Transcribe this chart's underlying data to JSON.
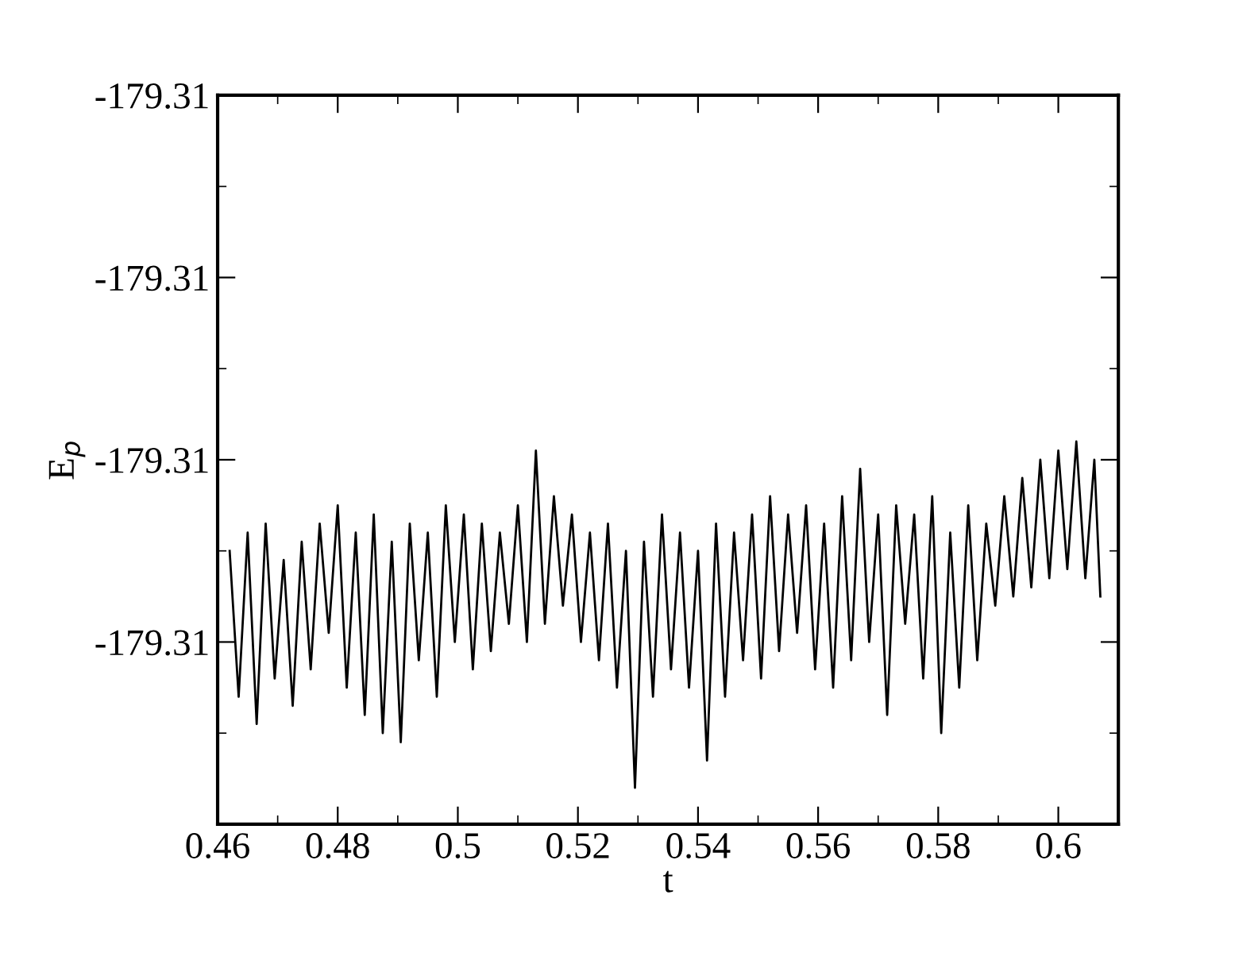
{
  "chart_data": {
    "type": "line",
    "xlabel": "t",
    "ylabel": "E$_{p}$",
    "xlim": [
      0.46,
      0.61
    ],
    "ylim": [
      -179.314,
      -179.306
    ],
    "xticks": [
      0.46,
      {
        "value": 0.47,
        "label": null
      },
      0.48,
      {
        "value": 0.49,
        "label": null
      },
      0.5,
      {
        "value": 0.51,
        "label": null
      },
      0.52,
      {
        "value": 0.53,
        "label": null
      },
      0.54,
      {
        "value": 0.55,
        "label": null
      },
      0.56,
      {
        "value": 0.57,
        "label": null
      },
      0.58,
      {
        "value": 0.59,
        "label": null
      },
      0.6
    ],
    "yticks": [
      {
        "value": -179.313,
        "label": null
      },
      {
        "value": -179.312,
        "label": "-179.31"
      },
      {
        "value": -179.311,
        "label": null
      },
      {
        "value": -179.31,
        "label": "-179.31"
      },
      {
        "value": -179.309,
        "label": null
      },
      {
        "value": -179.308,
        "label": "-179.31"
      },
      {
        "value": -179.307,
        "label": null
      },
      {
        "value": -179.306,
        "label": "-179.31"
      }
    ],
    "grid": false,
    "legend": false,
    "marker": "none",
    "line_style": "solid",
    "series": [
      {
        "color": "#000000",
        "x": [
          0.462,
          0.4635,
          0.465,
          0.4665,
          0.468,
          0.4695,
          0.471,
          0.4725,
          0.474,
          0.4755,
          0.477,
          0.4785,
          0.48,
          0.4815,
          0.483,
          0.4845,
          0.486,
          0.4875,
          0.489,
          0.4905,
          0.492,
          0.4935,
          0.495,
          0.4965,
          0.498,
          0.4995,
          0.501,
          0.5025,
          0.504,
          0.5055,
          0.507,
          0.5085,
          0.51,
          0.5115,
          0.513,
          0.5145,
          0.516,
          0.5175,
          0.519,
          0.5205,
          0.522,
          0.5235,
          0.525,
          0.5265,
          0.528,
          0.5295,
          0.531,
          0.5325,
          0.534,
          0.5355,
          0.537,
          0.5385,
          0.54,
          0.5415,
          0.543,
          0.5445,
          0.546,
          0.5475,
          0.549,
          0.5505,
          0.552,
          0.5535,
          0.555,
          0.5565,
          0.558,
          0.5595,
          0.561,
          0.5625,
          0.564,
          0.5655,
          0.567,
          0.5685,
          0.57,
          0.5715,
          0.573,
          0.5745,
          0.576,
          0.5775,
          0.579,
          0.5805,
          0.582,
          0.5835,
          0.585,
          0.5865,
          0.588,
          0.5895,
          0.591,
          0.5925,
          0.594,
          0.5955,
          0.597,
          0.5985,
          0.6,
          0.6015,
          0.603,
          0.6045,
          0.606,
          0.607
        ],
        "values": [
          -179.311,
          -179.3126,
          -179.3108,
          -179.3129,
          -179.3107,
          -179.3124,
          -179.3111,
          -179.3127,
          -179.3109,
          -179.3123,
          -179.3107,
          -179.3119,
          -179.3105,
          -179.3125,
          -179.3108,
          -179.3128,
          -179.3106,
          -179.313,
          -179.3109,
          -179.3131,
          -179.3107,
          -179.3122,
          -179.3108,
          -179.3126,
          -179.3105,
          -179.312,
          -179.3106,
          -179.3123,
          -179.3107,
          -179.3121,
          -179.3108,
          -179.3118,
          -179.3105,
          -179.312,
          -179.3099,
          -179.3118,
          -179.3104,
          -179.3116,
          -179.3106,
          -179.312,
          -179.3108,
          -179.3122,
          -179.3107,
          -179.3125,
          -179.311,
          -179.3136,
          -179.3109,
          -179.3126,
          -179.3106,
          -179.3123,
          -179.3108,
          -179.3125,
          -179.311,
          -179.3133,
          -179.3107,
          -179.3126,
          -179.3108,
          -179.3122,
          -179.3106,
          -179.3124,
          -179.3104,
          -179.3121,
          -179.3106,
          -179.3119,
          -179.3105,
          -179.3123,
          -179.3107,
          -179.3125,
          -179.3104,
          -179.3122,
          -179.3101,
          -179.312,
          -179.3106,
          -179.3128,
          -179.3105,
          -179.3118,
          -179.3106,
          -179.3124,
          -179.3104,
          -179.313,
          -179.3108,
          -179.3125,
          -179.3105,
          -179.3122,
          -179.3107,
          -179.3116,
          -179.3104,
          -179.3115,
          -179.3102,
          -179.3114,
          -179.31,
          -179.3113,
          -179.3099,
          -179.3112,
          -179.3098,
          -179.3113,
          -179.31,
          -179.3115
        ]
      }
    ]
  }
}
